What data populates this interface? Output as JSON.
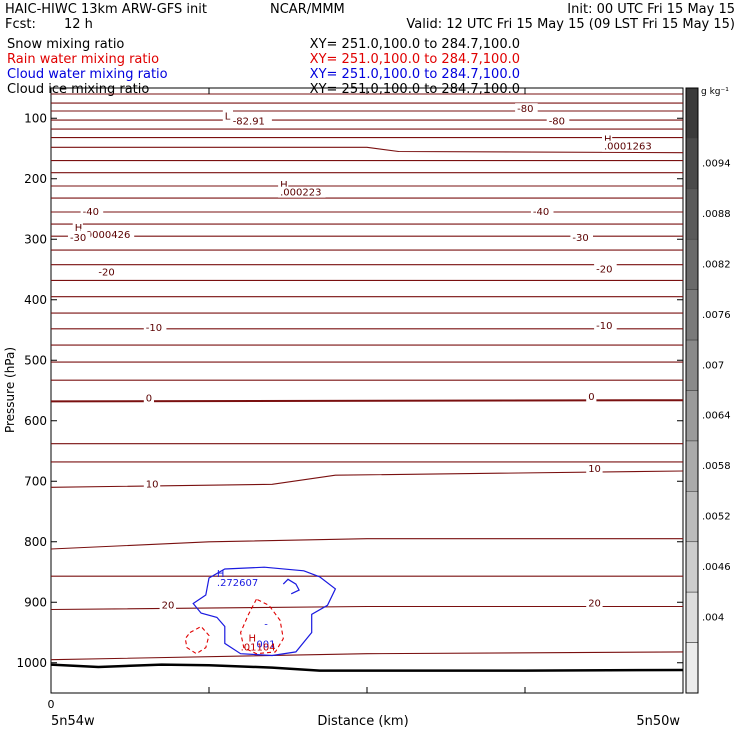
{
  "header": {
    "model_title": "HAIC-HIWC 13km ARW-GFS init",
    "org": "NCAR/MMM",
    "init": "Init: 00 UTC Fri 15 May 15",
    "fcst_label": "Fcst:",
    "fcst_value": "12 h",
    "valid": "Valid: 12 UTC Fri 15 May 15 (09 LST Fri 15 May 15)"
  },
  "fields": [
    {
      "name": "Snow mixing ratio",
      "xy": "XY= 251.0,100.0 to 284.7,100.0",
      "color": "#000000"
    },
    {
      "name": "Rain water mixing ratio",
      "xy": "XY= 251.0,100.0 to 284.7,100.0",
      "color": "#e00000"
    },
    {
      "name": "Cloud water mixing ratio",
      "xy": "XY= 251.0,100.0 to 284.7,100.0",
      "color": "#0000dd"
    },
    {
      "name": "Cloud ice mixing ratio",
      "xy": "XY= 251.0,100.0 to 284.7,100.0",
      "color": "#000000"
    }
  ],
  "chart_data": {
    "type": "contour",
    "ylabel": "Pressure (hPa)",
    "xlabel": "Distance (km)",
    "x_tick_label": "0",
    "x_left_label": "5n54w",
    "x_right_label": "5n50w",
    "x_range": [
      0,
      4
    ],
    "ylim": [
      1050,
      50
    ],
    "y_ticks": [
      100,
      200,
      300,
      400,
      500,
      600,
      700,
      800,
      900,
      1000
    ],
    "x_ticks": [
      0,
      1,
      2,
      3,
      4
    ],
    "colorbar": {
      "unit": "g kg⁻¹",
      "labels": [
        ".0094",
        ".0088",
        ".0082",
        ".0076",
        ".007",
        ".0064",
        ".0058",
        ".0052",
        ".0046",
        ".004"
      ],
      "colors": [
        "#3a3a3a",
        "#4a4a4a",
        "#5a5a5a",
        "#6a6a6a",
        "#7a7a7a",
        "#8a8a8a",
        "#9a9a9a",
        "#aaaaaa",
        "#bbbbbb",
        "#cccccc",
        "#dddddd",
        "#ececec"
      ]
    },
    "temperature_contours": [
      {
        "x": [
          0,
          4
        ],
        "p": [
          60,
          60
        ]
      },
      {
        "x": [
          0,
          4
        ],
        "p": [
          75,
          75
        ]
      },
      {
        "x": [
          0,
          4
        ],
        "p": [
          88,
          88
        ]
      },
      {
        "x": [
          0,
          4
        ],
        "p": [
          103,
          103
        ]
      },
      {
        "x": [
          0,
          4
        ],
        "p": [
          118,
          118
        ]
      },
      {
        "x": [
          0,
          4
        ],
        "p": [
          132,
          132
        ]
      },
      {
        "x": [
          0,
          2.0,
          2.2,
          4
        ],
        "p": [
          148,
          148,
          155,
          157
        ]
      },
      {
        "x": [
          0,
          4
        ],
        "p": [
          170,
          170
        ]
      },
      {
        "x": [
          0,
          4
        ],
        "p": [
          190,
          190
        ]
      },
      {
        "x": [
          0,
          4
        ],
        "p": [
          212,
          212
        ]
      },
      {
        "x": [
          0,
          4
        ],
        "p": [
          232,
          232
        ]
      },
      {
        "x": [
          0,
          4
        ],
        "p": [
          255,
          255
        ]
      },
      {
        "x": [
          0,
          4
        ],
        "p": [
          275,
          275
        ]
      },
      {
        "x": [
          0,
          4
        ],
        "p": [
          295,
          295
        ]
      },
      {
        "x": [
          0,
          4
        ],
        "p": [
          318,
          318
        ]
      },
      {
        "x": [
          0,
          4
        ],
        "p": [
          342,
          342
        ]
      },
      {
        "x": [
          0,
          4
        ],
        "p": [
          368,
          368
        ]
      },
      {
        "x": [
          0,
          4
        ],
        "p": [
          395,
          395
        ]
      },
      {
        "x": [
          0,
          4
        ],
        "p": [
          422,
          422
        ]
      },
      {
        "x": [
          0,
          4
        ],
        "p": [
          448,
          448
        ]
      },
      {
        "x": [
          0,
          4
        ],
        "p": [
          475,
          475
        ]
      },
      {
        "x": [
          0,
          4
        ],
        "p": [
          503,
          503
        ]
      },
      {
        "x": [
          0,
          4
        ],
        "p": [
          533,
          533
        ]
      },
      {
        "x": [
          0,
          4
        ],
        "p": [
          568,
          566
        ]
      },
      {
        "x": [
          0,
          4
        ],
        "p": [
          638,
          638
        ]
      },
      {
        "x": [
          0,
          4
        ],
        "p": [
          668,
          668
        ]
      },
      {
        "x": [
          0,
          1.4,
          1.8,
          4
        ],
        "p": [
          710,
          705,
          690,
          683
        ]
      },
      {
        "x": [
          0,
          1.0,
          2.0,
          4
        ],
        "p": [
          812,
          800,
          795,
          795
        ]
      },
      {
        "x": [
          0,
          4
        ],
        "p": [
          857,
          857
        ]
      },
      {
        "x": [
          0,
          2.0,
          4
        ],
        "p": [
          912,
          907,
          907
        ]
      },
      {
        "x": [
          0,
          2.0,
          4
        ],
        "p": [
          995,
          985,
          982
        ]
      }
    ],
    "freezing_line": {
      "x": [
        0,
        4
      ],
      "p": [
        568,
        566
      ]
    },
    "contour_labels": [
      {
        "x": 1.1,
        "p": 102,
        "text": "L"
      },
      {
        "x": 1.15,
        "p": 110,
        "text": "-82.91"
      },
      {
        "x": 2.95,
        "p": 90,
        "text": "-80"
      },
      {
        "x": 3.15,
        "p": 110,
        "text": "-80"
      },
      {
        "x": 3.5,
        "p": 140,
        "text": "H"
      },
      {
        "x": 3.5,
        "p": 152,
        "text": ".0001263"
      },
      {
        "x": 1.45,
        "p": 215,
        "text": "H"
      },
      {
        "x": 1.45,
        "p": 228,
        "text": ".000223"
      },
      {
        "x": 0.2,
        "p": 260,
        "text": "-40"
      },
      {
        "x": 3.05,
        "p": 260,
        "text": "-40"
      },
      {
        "x": 0.15,
        "p": 286,
        "text": "H"
      },
      {
        "x": 0.2,
        "p": 298,
        "text": ".0000426"
      },
      {
        "x": 0.12,
        "p": 303,
        "text": "-30"
      },
      {
        "x": 3.3,
        "p": 303,
        "text": "-30"
      },
      {
        "x": 0.3,
        "p": 360,
        "text": "-20"
      },
      {
        "x": 3.45,
        "p": 355,
        "text": "-20"
      },
      {
        "x": 0.6,
        "p": 452,
        "text": "-10"
      },
      {
        "x": 3.45,
        "p": 448,
        "text": "-10"
      },
      {
        "x": 0.6,
        "p": 568,
        "text": "0"
      },
      {
        "x": 3.4,
        "p": 566,
        "text": "0"
      },
      {
        "x": 0.6,
        "p": 710,
        "text": "10"
      },
      {
        "x": 3.4,
        "p": 685,
        "text": "10"
      },
      {
        "x": 0.7,
        "p": 910,
        "text": "20"
      },
      {
        "x": 3.4,
        "p": 907,
        "text": "20"
      }
    ],
    "cloud_water_contour": {
      "x": [
        1.0,
        1.1,
        1.35,
        1.6,
        1.7,
        1.8,
        1.75,
        1.65,
        1.65,
        1.55,
        1.4,
        1.2,
        1.1,
        1.1,
        1.05,
        0.95,
        0.9,
        0.98,
        1.0
      ],
      "p": [
        860,
        845,
        842,
        848,
        858,
        878,
        905,
        920,
        950,
        982,
        988,
        985,
        968,
        940,
        925,
        918,
        902,
        888,
        860
      ]
    },
    "cloud_water_inner": {
      "x": [
        1.47,
        1.5,
        1.55,
        1.57,
        1.52
      ],
      "p": [
        870,
        862,
        870,
        880,
        886
      ]
    },
    "cloud_water_labels": [
      {
        "x": 1.05,
        "p": 858,
        "text": "H"
      },
      {
        "x": 1.05,
        "p": 873,
        "text": ".272607"
      },
      {
        "x": 1.35,
        "p": 942,
        "text": "-"
      },
      {
        "x": 1.3,
        "p": 975,
        "text": "001"
      }
    ],
    "rain_contour_main": {
      "x": [
        1.3,
        1.25,
        1.2,
        1.22,
        1.3,
        1.42,
        1.47,
        1.45,
        1.38,
        1.3
      ],
      "p": [
        895,
        920,
        950,
        975,
        985,
        982,
        960,
        930,
        905,
        895
      ]
    },
    "rain_contour_small": {
      "x": [
        0.88,
        0.95,
        1.0,
        0.98,
        0.92,
        0.86,
        0.85,
        0.88
      ],
      "p": [
        950,
        940,
        955,
        975,
        985,
        975,
        960,
        950
      ]
    },
    "rain_labels": [
      {
        "x": 1.25,
        "p": 965,
        "text": "H"
      },
      {
        "x": 1.2,
        "p": 980,
        "text": ".01104"
      }
    ],
    "terrain": {
      "x": [
        0,
        0.3,
        0.7,
        1.0,
        1.4,
        1.7,
        2.2,
        2.6,
        3.0,
        4.0
      ],
      "p": [
        1003,
        1007,
        1003,
        1004,
        1008,
        1013,
        1013,
        1013,
        1013,
        1012
      ]
    }
  }
}
